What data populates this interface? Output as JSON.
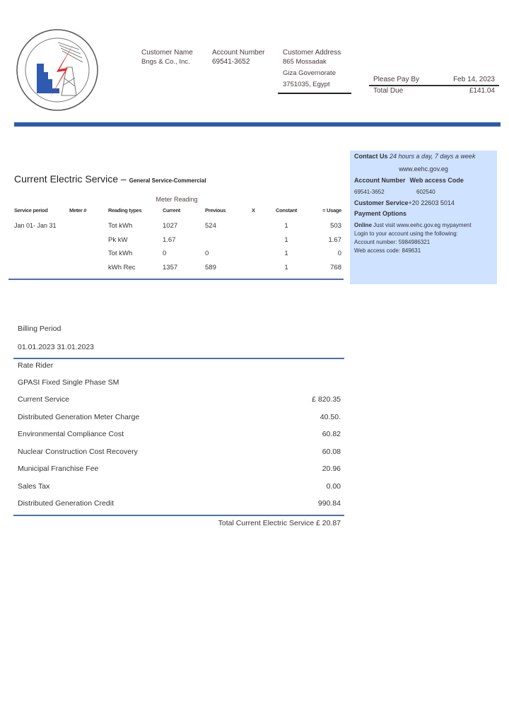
{
  "header": {
    "customer_name_label": "Customer Name",
    "customer_name": "Bngs & Co., Inc.",
    "account_number_label": "Account Number",
    "account_number": "69541-3652",
    "address_label": "Customer Address",
    "address": [
      "865 Mossadak",
      "Giza Governorate",
      "3751035, Egypt"
    ],
    "pay_by_label": "Please Pay By",
    "pay_by": "Feb 14, 2023",
    "total_due_label": "Total Due",
    "total_due": "£141.04",
    "brand_color": "#2e5aac"
  },
  "contact": {
    "title": "Contact Us",
    "hours": "24 hours a day, 7 days a week",
    "website": "www.eehc.gov.eg",
    "account_number_label": "Account Number",
    "web_code_label": "Web access Code",
    "account_number": "69541-3652",
    "web_code": "602540",
    "customer_service_label": "Customer Service",
    "customer_service": "+20 22603 5014",
    "payment_title": "Payment Options",
    "online_label": "Online",
    "online_text": "Just visit  www.eehc.gov.eg mypayment",
    "login_text": "Login to your account using the following:",
    "login_account": "Account number: 5984986321",
    "login_code": "Web access code: 849631"
  },
  "service": {
    "title": "Current Electric Service –",
    "subtitle": "General Service-Commercial",
    "meter_reading": "Meter Reading",
    "columns": [
      "Service period",
      "Meter #",
      "Reading types",
      "Current",
      "Previous",
      "X",
      "Constant",
      "= Usage"
    ],
    "period": "Jan  01- Jan 31",
    "rows": [
      {
        "type": "Tot kWh",
        "current": "1027",
        "previous": "524",
        "constant": "1",
        "usage": "503"
      },
      {
        "type": "Pk kW",
        "current": "1.67",
        "previous": "",
        "constant": "1",
        "usage": "1.67"
      },
      {
        "type": "Tot kWh",
        "current": "0",
        "previous": "0",
        "constant": "1",
        "usage": "0"
      },
      {
        "type": "kWh Rec",
        "current": "1357",
        "previous": "589",
        "constant": "1",
        "usage": "768"
      }
    ]
  },
  "billing": {
    "period_label": "Billing Period",
    "period": "01.01.2023 31.01.2023",
    "rate_rider": "Rate Rider",
    "rate_name": "GPASI Fixed Single Phase SM",
    "items": [
      {
        "label": "Current Service",
        "amount": "£ 820.35"
      },
      {
        "label": "Distributed Generation Meter Charge",
        "amount": "40.50."
      },
      {
        "label": "Environmental Compliance Cost",
        "amount": "60.82"
      },
      {
        "label": "Nuclear Construction Cost Recovery",
        "amount": "60.08"
      },
      {
        "label": "Municipal Franchise Fee",
        "amount": "20.96"
      },
      {
        "label": "Sales Tax",
        "amount": "0.00"
      },
      {
        "label": "Distributed Generation Credit",
        "amount": "990.84"
      }
    ],
    "total": "Total Current Electric Service £ 20.87"
  }
}
